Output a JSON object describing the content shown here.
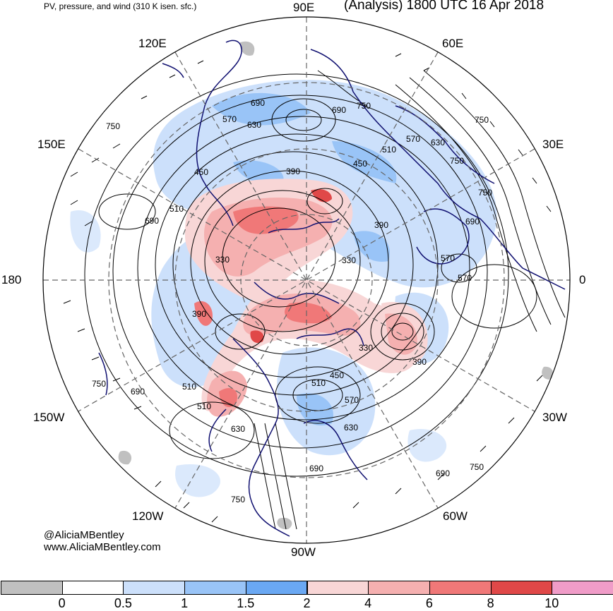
{
  "header": {
    "subtitle": "PV, pressure, and wind (310 K isen. sfc.)",
    "title": "(Analysis) 1800 UTC 16 Apr 2018"
  },
  "longitude_labels": {
    "lon_90e": "90E",
    "lon_120e": "120E",
    "lon_60e": "60E",
    "lon_150e": "150E",
    "lon_30e": "30E",
    "lon_180": "180",
    "lon_0": "0",
    "lon_150w": "150W",
    "lon_30w": "30W",
    "lon_120w": "120W",
    "lon_60w": "60W",
    "lon_90w": "90W"
  },
  "credit": {
    "handle": "@AliciaMBentley",
    "website": "www.AliciaMBentley.com"
  },
  "isobar_labels": [
    "750",
    "690",
    "630",
    "570",
    "510",
    "450",
    "390",
    "330"
  ],
  "colorbar": {
    "ticks": [
      "0",
      "0.5",
      "1",
      "1.5",
      "2",
      "4",
      "6",
      "8",
      "10"
    ],
    "colors": [
      "#c0c0c0",
      "#ffffff",
      "#cce0fb",
      "#99c4f7",
      "#6aa8f3",
      "#f8d6d6",
      "#f5b0b0",
      "#f07878",
      "#e04848",
      "#f09cc8"
    ]
  },
  "map_colors": {
    "land_outline": "#101070",
    "isobar": "#000000",
    "grid": "#666666"
  }
}
